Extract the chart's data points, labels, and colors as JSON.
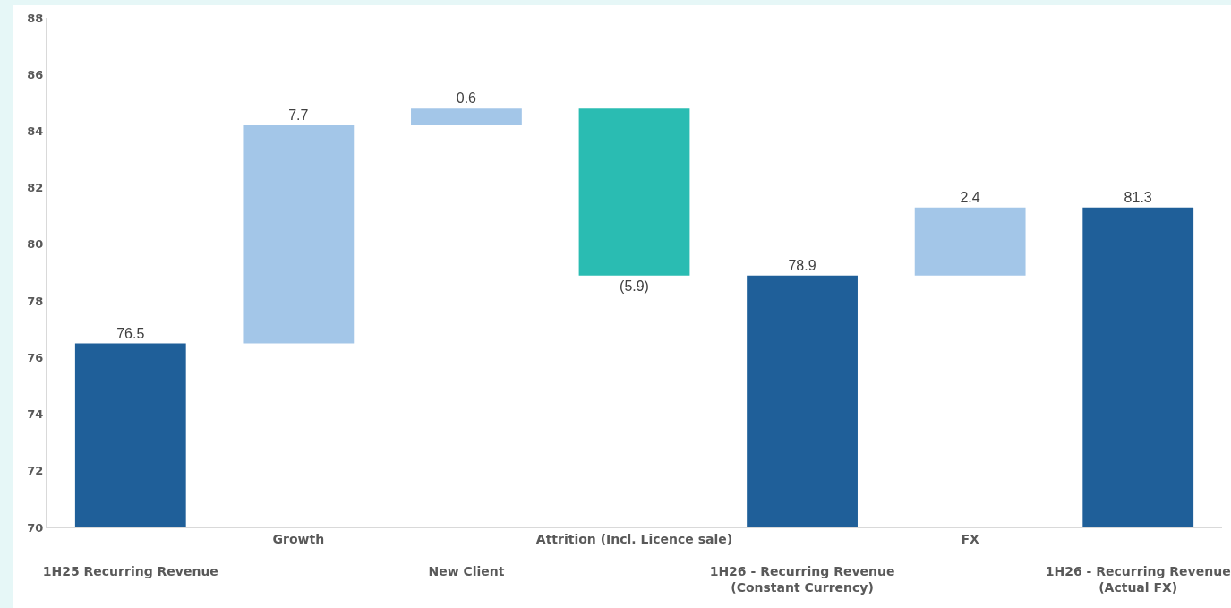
{
  "chart_data": {
    "type": "bar",
    "categories": [
      "1H25 Recurring Revenue",
      "Growth",
      "New Client",
      "Attrition (Incl. Licence sale)",
      "1H26 - Recurring Revenue (Constant Currency)",
      "FX",
      "1H26 - Recurring Revenue (Actual FX)"
    ],
    "values": [
      76.5,
      7.7,
      0.6,
      -5.9,
      78.9,
      2.4,
      81.3
    ],
    "base": [
      null,
      76.5,
      84.2,
      84.8,
      null,
      78.9,
      null
    ],
    "colors": [
      "#1f5f99",
      "#a3c6e8",
      "#a3c6e8",
      "#2abcb2",
      "#1f5f99",
      "#a3c6e8",
      "#1f5f99"
    ],
    "value_labels": [
      "76.5",
      "7.7",
      "0.6",
      "(5.9)",
      "78.9",
      "2.4",
      "81.3"
    ],
    "ylim": [
      70,
      88
    ],
    "yticks": [
      70,
      72,
      74,
      76,
      78,
      80,
      82,
      84,
      86,
      88
    ],
    "grid": false
  }
}
